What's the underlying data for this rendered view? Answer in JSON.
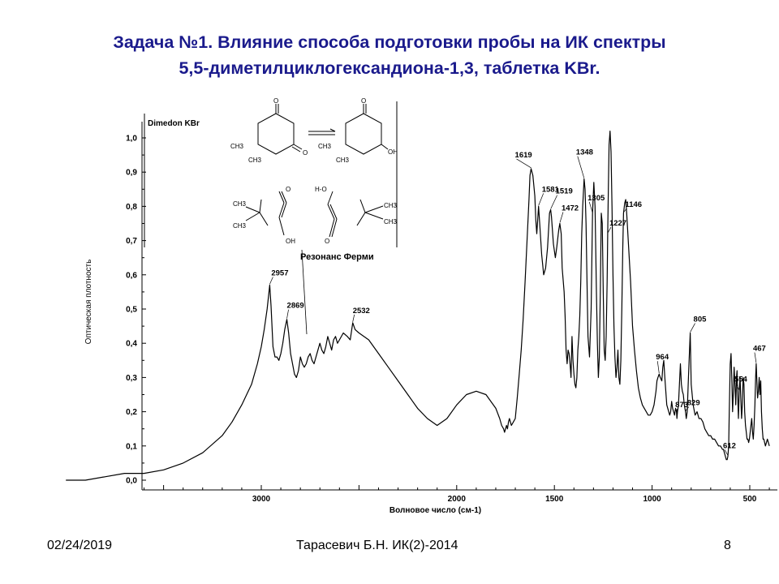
{
  "slide": {
    "title_line1": "Задача №1. Влияние способа подготовки пробы на ИК спектры",
    "title_line2": "5,5-диметилциклогександиона-1,3, таблетка KBr.",
    "footer_date": "02/24/2019",
    "footer_author": "Тарасевич Б.Н. ИК(2)-2014",
    "footer_page": "8"
  },
  "inset": {
    "label": "Dimedon KBr",
    "caption": "Резонанс Ферми",
    "structure_labels": [
      "O",
      "O",
      "CH3",
      "CH3",
      "O",
      "OH",
      "CH3",
      "CH3",
      "CH3",
      "CH3",
      "O",
      "OH",
      "H-O",
      "O",
      "CH3",
      "CH3"
    ]
  },
  "chart_data": {
    "type": "line",
    "title": "",
    "xlabel": "Волновое число (см-1)",
    "ylabel": "Оптическая плотность",
    "xlim": [
      4000,
      400
    ],
    "ylim": [
      0.0,
      1.05
    ],
    "x_reversed": true,
    "x_ticks": [
      3000,
      2500,
      2000,
      1500,
      1000,
      500
    ],
    "x_tick_labels": [
      "3000",
      "",
      "2000",
      "1500",
      "1000",
      "500"
    ],
    "y_ticks": [
      0.0,
      0.1,
      0.2,
      0.3,
      0.4,
      0.5,
      0.6,
      0.7,
      0.8,
      0.9,
      1.0
    ],
    "y_tick_labels": [
      "0,0",
      "0,1",
      "0,2",
      "0,3",
      "0,4",
      "0,5",
      "0,6",
      "0,7",
      "0,8",
      "0,9",
      "1,0"
    ],
    "color": "#000000",
    "series": [
      {
        "x": [
          4000,
          3900,
          3800,
          3700,
          3600,
          3500,
          3400,
          3300,
          3200,
          3150,
          3100,
          3050,
          3020,
          3000,
          2985,
          2970,
          2957,
          2950,
          2940,
          2930,
          2920,
          2910,
          2900,
          2890,
          2880,
          2869,
          2860,
          2850,
          2840,
          2830,
          2820,
          2810,
          2800,
          2790,
          2780,
          2770,
          2760,
          2750,
          2740,
          2730,
          2720,
          2710,
          2700,
          2690,
          2680,
          2670,
          2660,
          2650,
          2640,
          2630,
          2620,
          2610,
          2600,
          2580,
          2560,
          2545,
          2532,
          2520,
          2500,
          2450,
          2400,
          2350,
          2300,
          2250,
          2200,
          2150,
          2100,
          2050,
          2000,
          1950,
          1900,
          1850,
          1800,
          1780,
          1770,
          1760,
          1755,
          1750,
          1745,
          1740,
          1735,
          1730,
          1725,
          1720,
          1710,
          1700,
          1690,
          1680,
          1670,
          1660,
          1650,
          1640,
          1630,
          1625,
          1619,
          1610,
          1600,
          1595,
          1590,
          1581,
          1575,
          1565,
          1555,
          1545,
          1535,
          1525,
          1519,
          1515,
          1505,
          1495,
          1488,
          1478,
          1472,
          1465,
          1460,
          1450,
          1445,
          1440,
          1435,
          1430,
          1425,
          1420,
          1415,
          1410,
          1405,
          1400,
          1395,
          1390,
          1385,
          1380,
          1375,
          1370,
          1365,
          1360,
          1355,
          1348,
          1343,
          1338,
          1333,
          1328,
          1320,
          1312,
          1305,
          1298,
          1292,
          1285,
          1280,
          1275,
          1270,
          1265,
          1260,
          1255,
          1250,
          1245,
          1240,
          1235,
          1230,
          1227,
          1224,
          1220,
          1215,
          1210,
          1205,
          1200,
          1195,
          1190,
          1185,
          1180,
          1175,
          1170,
          1165,
          1160,
          1155,
          1150,
          1146,
          1140,
          1135,
          1130,
          1120,
          1110,
          1100,
          1090,
          1080,
          1070,
          1060,
          1050,
          1040,
          1030,
          1020,
          1010,
          1000,
          990,
          980,
          975,
          970,
          964,
          958,
          950,
          945,
          940,
          935,
          930,
          925,
          920,
          915,
          910,
          905,
          900,
          895,
          890,
          885,
          880,
          875,
          873,
          870,
          865,
          860,
          855,
          850,
          845,
          840,
          835,
          829,
          825,
          820,
          815,
          810,
          805,
          800,
          790,
          780,
          770,
          760,
          750,
          740,
          730,
          720,
          710,
          700,
          690,
          680,
          670,
          660,
          650,
          640,
          635,
          630,
          625,
          620,
          616,
          612,
          608,
          605,
          600,
          596,
          592,
          588,
          584,
          580,
          576,
          572,
          568,
          565,
          562,
          558,
          554,
          550,
          546,
          542,
          538,
          534,
          530,
          526,
          522,
          518,
          514,
          510,
          506,
          502,
          498,
          494,
          490,
          486,
          482,
          478,
          474,
          470,
          467,
          463,
          460,
          456,
          452,
          448,
          444,
          440,
          436,
          432,
          428,
          424,
          420,
          415,
          410,
          405,
          400
        ],
        "y": [
          0.0,
          0.0,
          0.01,
          0.02,
          0.02,
          0.03,
          0.05,
          0.08,
          0.13,
          0.17,
          0.22,
          0.28,
          0.34,
          0.39,
          0.44,
          0.5,
          0.57,
          0.51,
          0.39,
          0.36,
          0.36,
          0.35,
          0.37,
          0.4,
          0.44,
          0.47,
          0.43,
          0.37,
          0.34,
          0.31,
          0.3,
          0.32,
          0.36,
          0.34,
          0.33,
          0.34,
          0.36,
          0.37,
          0.35,
          0.34,
          0.36,
          0.38,
          0.4,
          0.38,
          0.37,
          0.39,
          0.42,
          0.4,
          0.38,
          0.41,
          0.42,
          0.4,
          0.41,
          0.43,
          0.42,
          0.41,
          0.46,
          0.44,
          0.43,
          0.41,
          0.37,
          0.33,
          0.29,
          0.25,
          0.21,
          0.18,
          0.16,
          0.18,
          0.22,
          0.25,
          0.26,
          0.25,
          0.21,
          0.18,
          0.16,
          0.15,
          0.14,
          0.15,
          0.16,
          0.15,
          0.17,
          0.18,
          0.17,
          0.16,
          0.17,
          0.18,
          0.24,
          0.31,
          0.38,
          0.47,
          0.58,
          0.7,
          0.82,
          0.89,
          0.91,
          0.89,
          0.83,
          0.76,
          0.72,
          0.8,
          0.75,
          0.66,
          0.6,
          0.62,
          0.68,
          0.78,
          0.79,
          0.77,
          0.69,
          0.65,
          0.68,
          0.73,
          0.75,
          0.72,
          0.62,
          0.55,
          0.48,
          0.38,
          0.34,
          0.38,
          0.37,
          0.34,
          0.3,
          0.42,
          0.35,
          0.31,
          0.28,
          0.27,
          0.3,
          0.38,
          0.42,
          0.48,
          0.58,
          0.72,
          0.8,
          0.88,
          0.85,
          0.75,
          0.58,
          0.42,
          0.36,
          0.5,
          0.78,
          0.87,
          0.8,
          0.55,
          0.4,
          0.3,
          0.36,
          0.55,
          0.78,
          0.75,
          0.55,
          0.38,
          0.35,
          0.42,
          0.58,
          0.72,
          0.85,
          0.98,
          1.02,
          0.96,
          0.8,
          0.6,
          0.45,
          0.36,
          0.3,
          0.33,
          0.38,
          0.3,
          0.28,
          0.35,
          0.5,
          0.68,
          0.78,
          0.81,
          0.82,
          0.78,
          0.68,
          0.58,
          0.45,
          0.38,
          0.32,
          0.27,
          0.24,
          0.22,
          0.21,
          0.2,
          0.19,
          0.19,
          0.2,
          0.22,
          0.26,
          0.29,
          0.3,
          0.31,
          0.3,
          0.29,
          0.33,
          0.35,
          0.3,
          0.26,
          0.22,
          0.21,
          0.2,
          0.19,
          0.2,
          0.23,
          0.21,
          0.2,
          0.19,
          0.21,
          0.2,
          0.18,
          0.2,
          0.22,
          0.28,
          0.34,
          0.28,
          0.26,
          0.25,
          0.22,
          0.2,
          0.18,
          0.2,
          0.28,
          0.36,
          0.43,
          0.28,
          0.22,
          0.19,
          0.2,
          0.18,
          0.18,
          0.17,
          0.15,
          0.14,
          0.13,
          0.13,
          0.12,
          0.12,
          0.11,
          0.1,
          0.1,
          0.09,
          0.09,
          0.08,
          0.07,
          0.06,
          0.06,
          0.07,
          0.1,
          0.2,
          0.34,
          0.37,
          0.3,
          0.2,
          0.26,
          0.33,
          0.28,
          0.22,
          0.3,
          0.32,
          0.25,
          0.18,
          0.26,
          0.3,
          0.24,
          0.18,
          0.22,
          0.3,
          0.28,
          0.2,
          0.16,
          0.14,
          0.12,
          0.12,
          0.11,
          0.12,
          0.14,
          0.16,
          0.18,
          0.14,
          0.12,
          0.16,
          0.22,
          0.3,
          0.34,
          0.28,
          0.24,
          0.26,
          0.3,
          0.25,
          0.29,
          0.2,
          0.15,
          0.12,
          0.12,
          0.11,
          0.1,
          0.11,
          0.12,
          0.11,
          0.1
        ]
      }
    ],
    "peak_labels": [
      {
        "x": 2957,
        "text": "2957"
      },
      {
        "x": 2869,
        "text": "2869"
      },
      {
        "x": 2532,
        "text": "2532"
      },
      {
        "x": 1619,
        "text": "1619"
      },
      {
        "x": 1581,
        "text": "1581"
      },
      {
        "x": 1519,
        "text": "1519"
      },
      {
        "x": 1472,
        "text": "1472"
      },
      {
        "x": 1348,
        "text": "1348"
      },
      {
        "x": 1305,
        "text": "1305"
      },
      {
        "x": 1227,
        "text": "1227"
      },
      {
        "x": 1146,
        "text": "1146"
      },
      {
        "x": 964,
        "text": "964"
      },
      {
        "x": 873,
        "text": "873"
      },
      {
        "x": 829,
        "text": "829"
      },
      {
        "x": 805,
        "text": "805"
      },
      {
        "x": 612,
        "text": "612"
      },
      {
        "x": 554,
        "text": "554"
      },
      {
        "x": 467,
        "text": "467"
      }
    ]
  }
}
